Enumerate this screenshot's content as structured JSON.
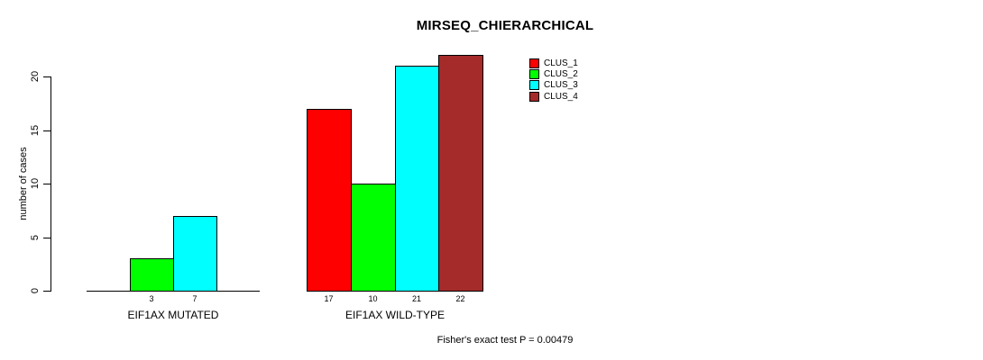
{
  "chart_data": {
    "type": "bar",
    "title": "MIRSEQ_CHIERARCHICAL",
    "ylabel": "number of cases",
    "yticks": [
      0,
      5,
      10,
      15,
      20
    ],
    "ylim": [
      0,
      22
    ],
    "grid": false,
    "legend_position": "top-right",
    "background": "#FFFFFF",
    "bar_border_color": "#000000",
    "text_color": "#000000",
    "series": [
      {
        "name": "CLUS_1",
        "color": "#FF0000"
      },
      {
        "name": "CLUS_2",
        "color": "#00FF00"
      },
      {
        "name": "CLUS_3",
        "color": "#00FFFF"
      },
      {
        "name": "CLUS_4",
        "color": "#A52A2A"
      }
    ],
    "categories": [
      "EIF1AX MUTATED",
      "EIF1AX WILD-TYPE"
    ],
    "groups": [
      {
        "label": "EIF1AX MUTATED",
        "values": [
          0,
          3,
          7,
          0
        ]
      },
      {
        "label": "EIF1AX WILD-TYPE",
        "values": [
          17,
          10,
          21,
          22
        ]
      }
    ],
    "zero_bars_hidden": true,
    "footnote": "Fisher's exact test P = 0.00479"
  }
}
